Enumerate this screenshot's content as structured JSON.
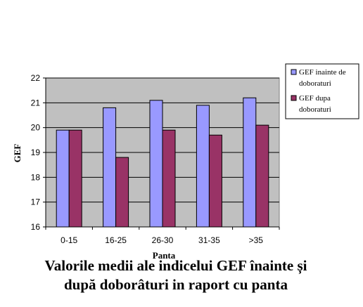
{
  "chart_data": {
    "type": "bar",
    "categories": [
      "0-15",
      "16-25",
      "26-30",
      "31-35",
      ">35"
    ],
    "series": [
      {
        "name": "GEF inainte de doborat̆uri",
        "color": "#9999ff",
        "values": [
          19.9,
          20.8,
          21.1,
          20.9,
          21.2
        ]
      },
      {
        "name": "GEF dupa doboraturi",
        "color": "#993366",
        "values": [
          19.9,
          18.8,
          19.9,
          19.7,
          20.1
        ]
      }
    ],
    "xlabel": "Panta",
    "ylabel": "GEF",
    "ylim": [
      16,
      22
    ],
    "yticks": [
      "16",
      "17",
      "18",
      "19",
      "20",
      "21",
      "22"
    ],
    "grid": "horizontal",
    "legend_position": "right",
    "plot_background": "#c0c0c0"
  },
  "legend": {
    "entries": [
      {
        "lines": [
          "GEF inainte de",
          "doboraturi"
        ]
      },
      {
        "lines": [
          "GEF dupa",
          "doboraturi"
        ]
      }
    ]
  },
  "caption": {
    "line1": "Valorile medii ale indicelui GEF înainte și",
    "line2": "după doborâturi in raport cu panta"
  }
}
